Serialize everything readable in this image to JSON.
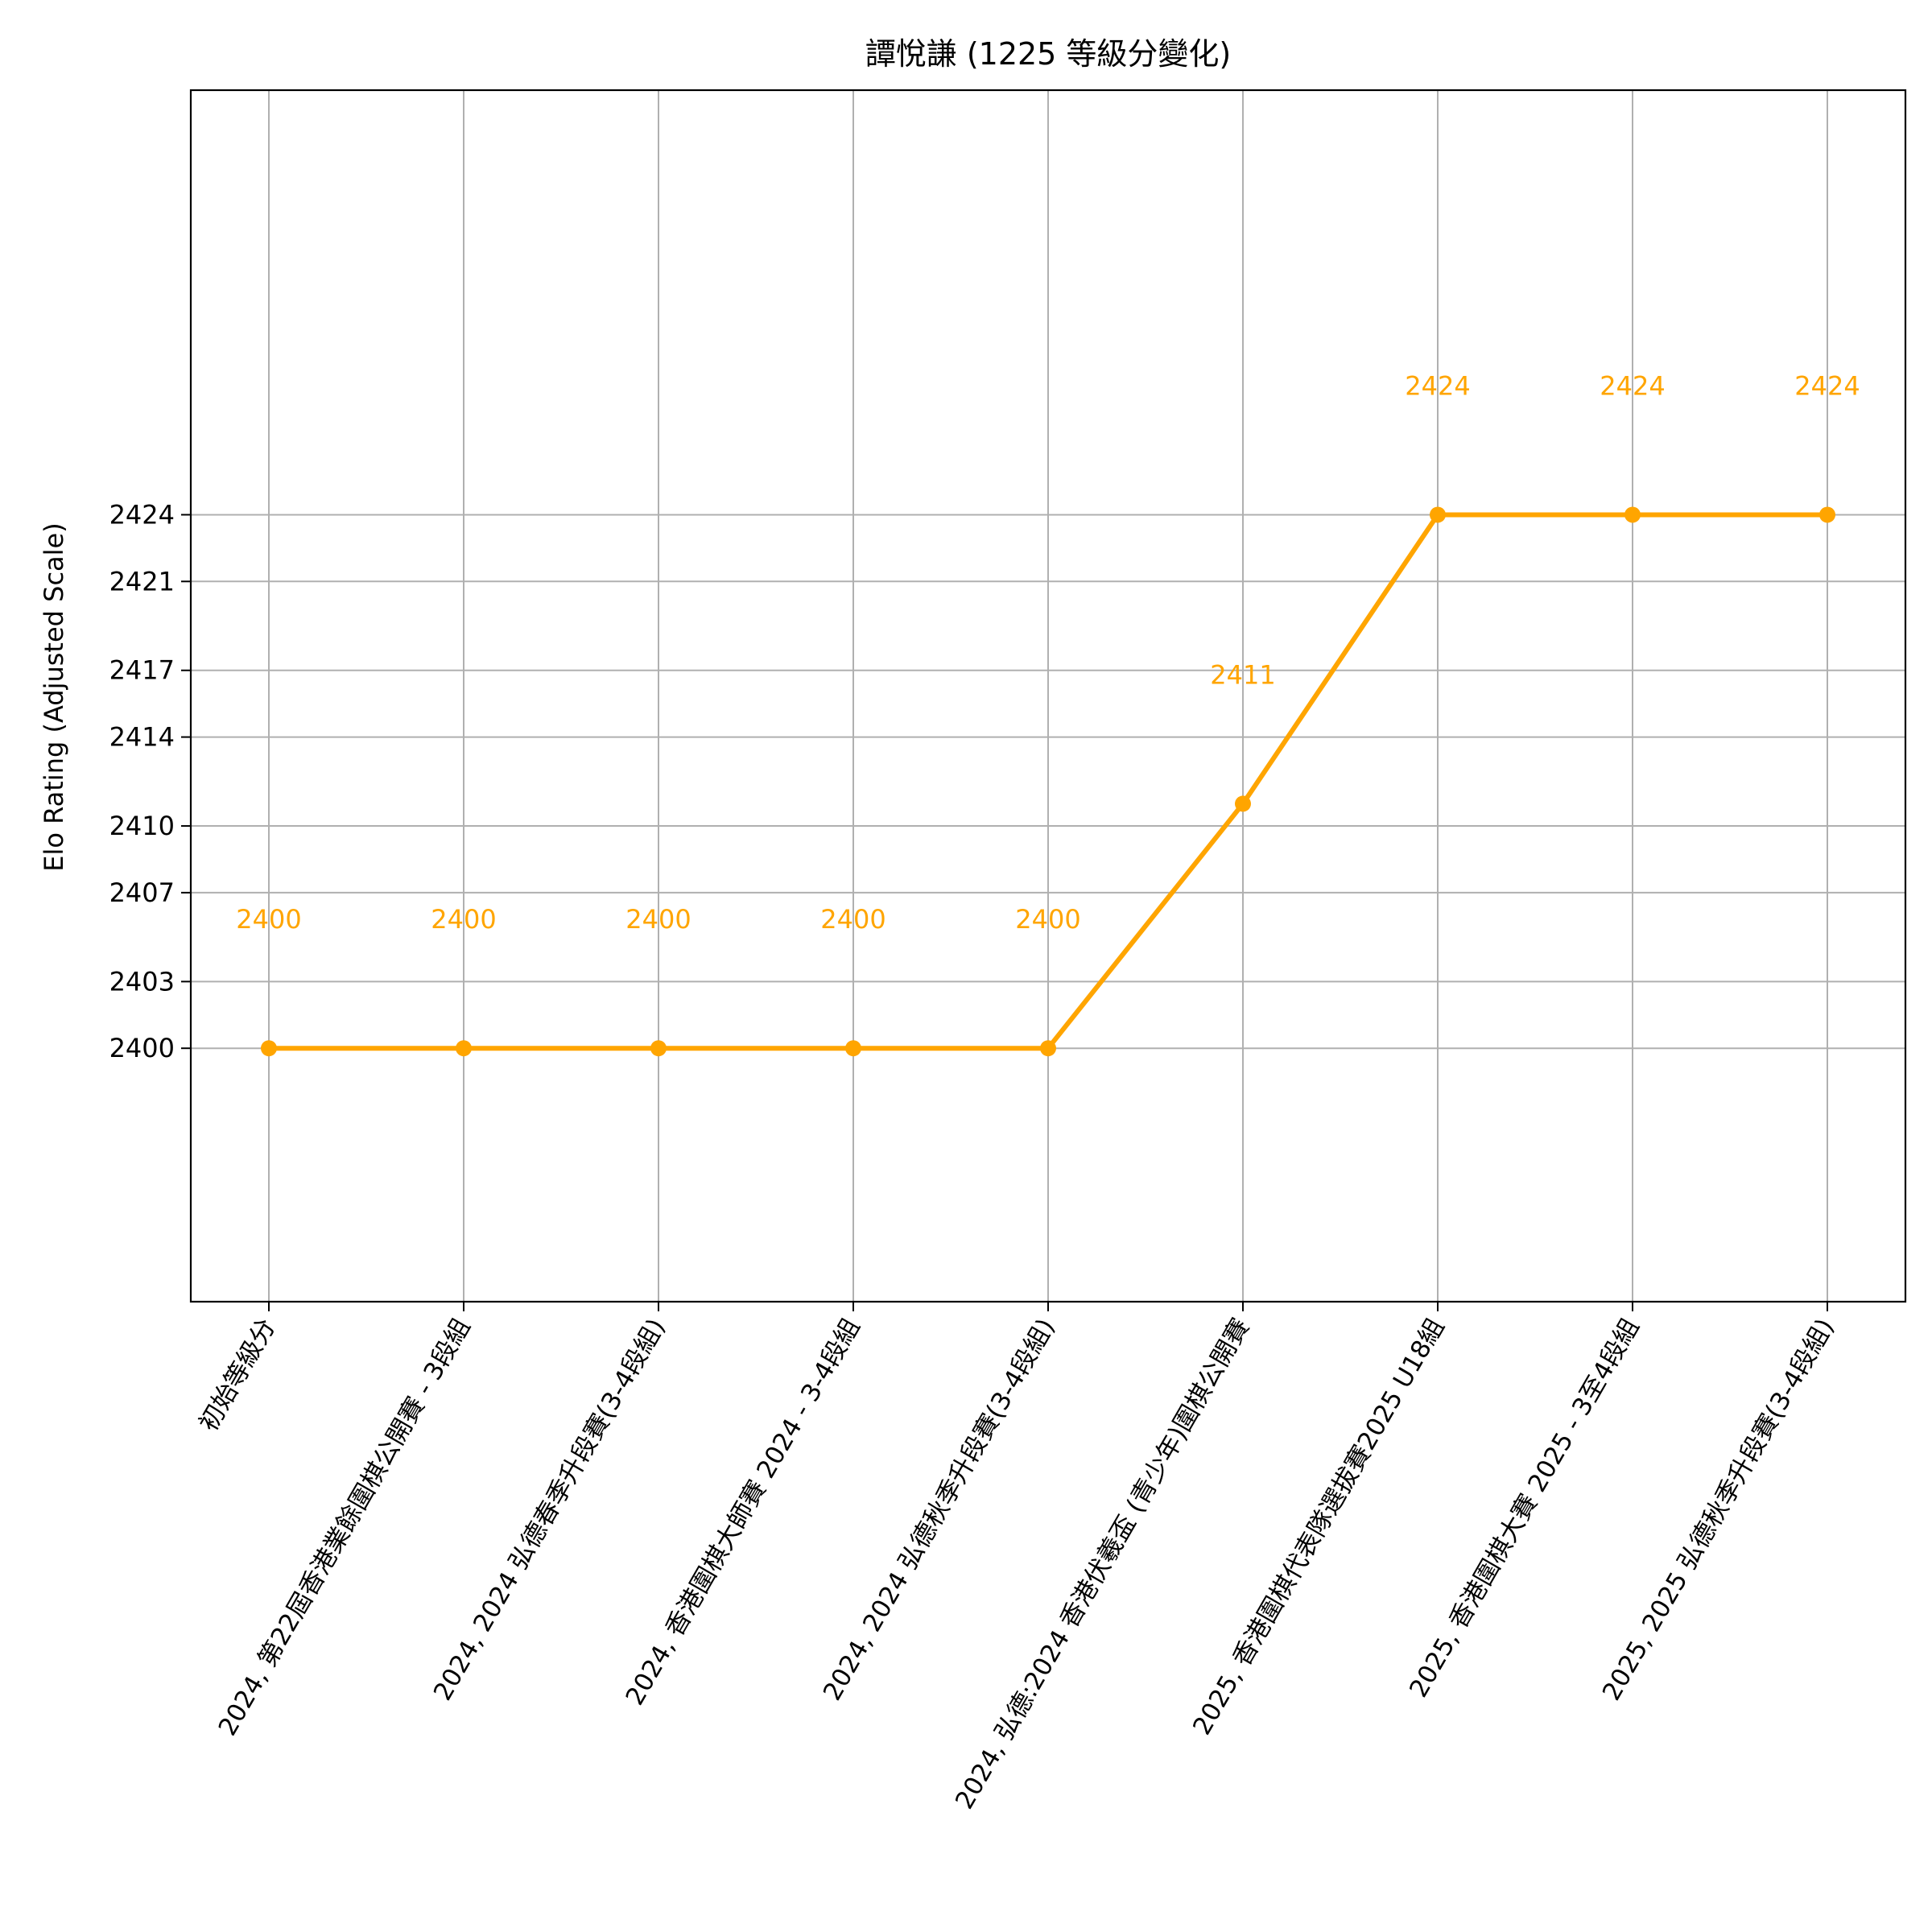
{
  "chart_data": {
    "type": "line",
    "title": "譚悅謙 (1225 等級分變化)",
    "xlabel": "",
    "ylabel": "Elo Rating (Adjusted Scale)",
    "categories": [
      "初始等級分",
      "2024, 第22屆香港業餘圍棋公開賽 - 3段組",
      "2024, 2024 弘德春季升段賽(3-4段組)",
      "2024, 香港圍棋大師賽 2024 - 3-4段組",
      "2024, 2024 弘德秋季升段賽(3-4段組)",
      "2024, 弘德:2024 香港伏羲盃 (青少年)圍棋公開賽",
      "2025, 香港圍棋代表隊選拔賽2025 U18組",
      "2025, 香港圍棋大賽 2025 - 3至4段組",
      "2025, 2025 弘德秋季升段賽(3-4段組)"
    ],
    "values": [
      2400,
      2400,
      2400,
      2400,
      2400,
      2411,
      2424,
      2424,
      2424
    ],
    "data_labels": [
      "2400",
      "2400",
      "2400",
      "2400",
      "2400",
      "2411",
      "2424",
      "2424",
      "2424"
    ],
    "yticks": [
      2400,
      2403,
      2407,
      2410,
      2414,
      2417,
      2421,
      2424
    ],
    "ylim": [
      2388.6,
      2443.1
    ],
    "grid": true,
    "line_color": "#FFA500"
  }
}
